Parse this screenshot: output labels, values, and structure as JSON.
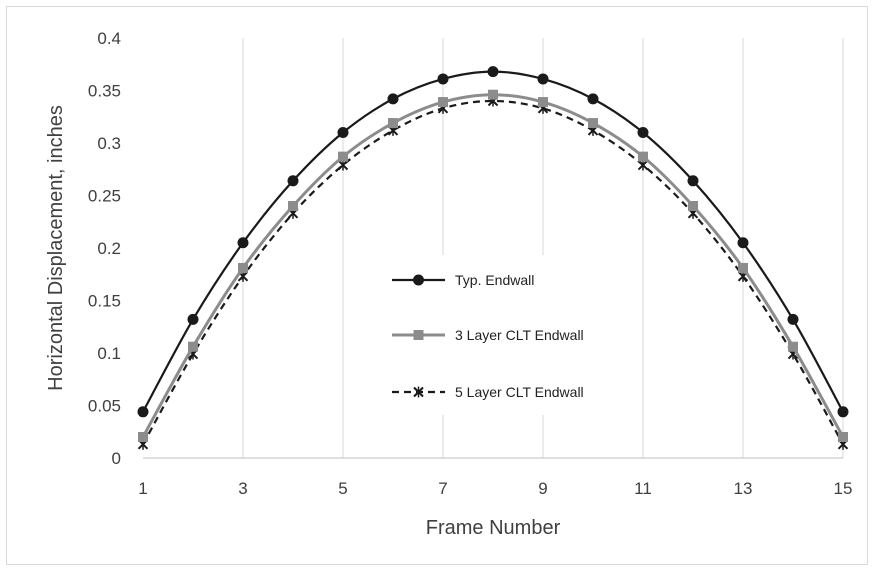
{
  "chart_data": {
    "type": "line",
    "xlabel": "Frame Number",
    "ylabel": "Horizontal Displacement, inches",
    "x": [
      1,
      2,
      3,
      4,
      5,
      6,
      7,
      8,
      9,
      10,
      11,
      12,
      13,
      14,
      15
    ],
    "xlim": [
      1,
      15
    ],
    "ylim": [
      0,
      0.4
    ],
    "x_ticks": [
      "1",
      "3",
      "5",
      "7",
      "9",
      "11",
      "13",
      "15"
    ],
    "y_ticks": [
      "0",
      "0.05",
      "0.1",
      "0.15",
      "0.2",
      "0.25",
      "0.3",
      "0.35",
      "0.4"
    ],
    "grid": "vertical",
    "legend_position": "center",
    "series": [
      {
        "name": "Typ. Endwall",
        "marker": "circle",
        "line": "solid",
        "color": "#1a1a1a",
        "values": [
          0.044,
          0.132,
          0.205,
          0.264,
          0.31,
          0.342,
          0.361,
          0.368,
          0.361,
          0.342,
          0.31,
          0.264,
          0.205,
          0.132,
          0.044
        ]
      },
      {
        "name": "3 Layer CLT Endwall",
        "marker": "square",
        "line": "solid",
        "color": "#8c8c8c",
        "values": [
          0.02,
          0.106,
          0.181,
          0.24,
          0.287,
          0.319,
          0.339,
          0.346,
          0.339,
          0.319,
          0.287,
          0.24,
          0.181,
          0.106,
          0.02
        ]
      },
      {
        "name": "5 Layer CLT Endwall",
        "marker": "x",
        "line": "dashed",
        "color": "#1a1a1a",
        "values": [
          0.013,
          0.099,
          0.173,
          0.233,
          0.279,
          0.312,
          0.333,
          0.34,
          0.333,
          0.312,
          0.279,
          0.233,
          0.173,
          0.099,
          0.013
        ]
      }
    ]
  }
}
